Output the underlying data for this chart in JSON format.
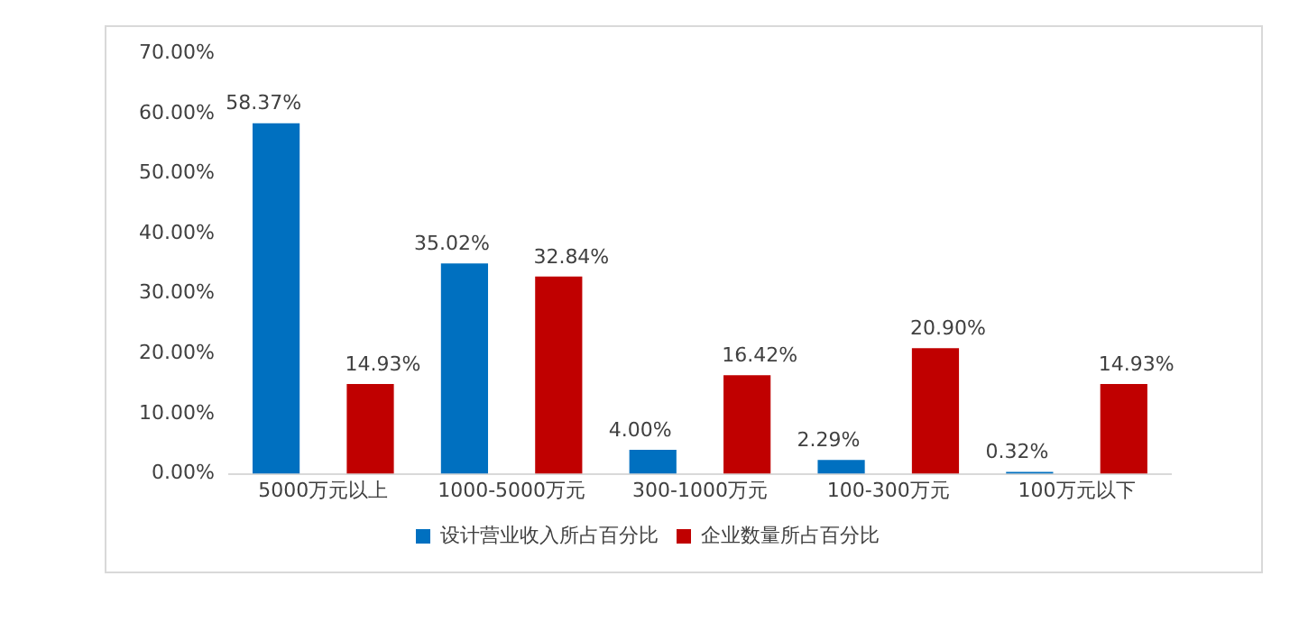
{
  "chart_data": {
    "type": "bar",
    "categories": [
      "5000万元以上",
      "1000-5000万元",
      "300-1000万元",
      "100-300万元",
      "100万元以下"
    ],
    "series": [
      {
        "name": "设计营业收入所占百分比",
        "color": "#0070c0",
        "values": [
          58.37,
          35.02,
          4.0,
          2.29,
          0.32
        ],
        "value_labels": [
          "58.37%",
          "35.02%",
          "4.00%",
          "2.29%",
          "0.32%"
        ]
      },
      {
        "name": "企业数量所占百分比",
        "color": "#c00000",
        "values": [
          14.93,
          32.84,
          16.42,
          20.9,
          14.93
        ],
        "value_labels": [
          "14.93%",
          "32.84%",
          "16.42%",
          "20.90%",
          "14.93%"
        ]
      }
    ],
    "ylim": [
      0,
      70
    ],
    "yticks": [
      {
        "value": 0,
        "label": "0.00%"
      },
      {
        "value": 10,
        "label": "10.00%"
      },
      {
        "value": 20,
        "label": "20.00%"
      },
      {
        "value": 30,
        "label": "30.00%"
      },
      {
        "value": 40,
        "label": "40.00%"
      },
      {
        "value": 50,
        "label": "50.00%"
      },
      {
        "value": 60,
        "label": "60.00%"
      },
      {
        "value": 70,
        "label": "70.00%"
      }
    ],
    "grid": false,
    "legend": "bottom"
  }
}
